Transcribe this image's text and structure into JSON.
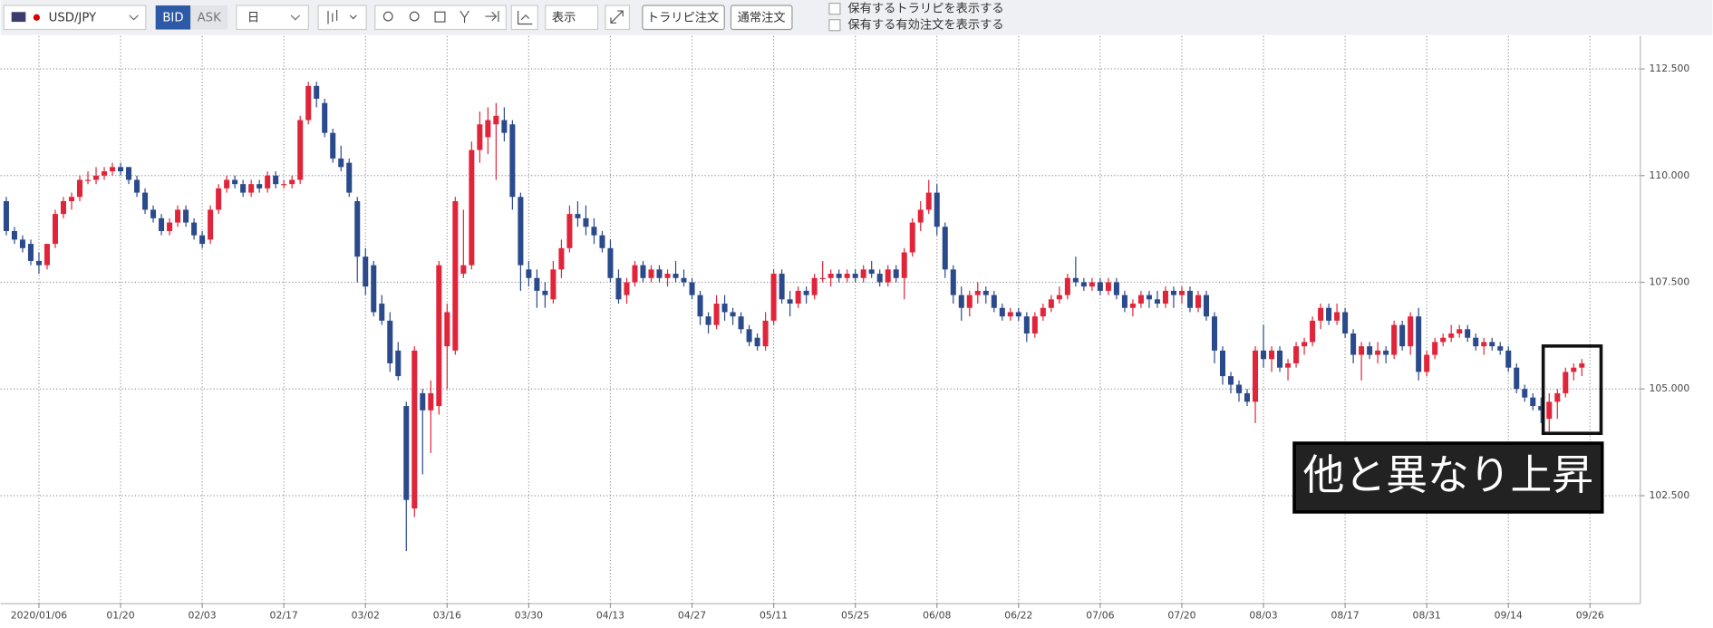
{
  "toolbar": {
    "symbol": "USD/JPY",
    "bid": "BID",
    "ask": "ASK",
    "period": "日",
    "view": "表示",
    "trap_order": "トラリピ注文",
    "normal_order": "通常注文",
    "show_trap": "保有するトラリピを表示する",
    "show_orders": "保有する有効注文を表示する"
  },
  "chart_data": {
    "type": "candlestick",
    "annotation": "他と異なり上昇",
    "up_color": "#e0253a",
    "down_color": "#2b4a8b",
    "grid": true,
    "xlim": [
      -0.7,
      199.9
    ],
    "ylim": [
      99.97,
      113.27
    ],
    "yticks": [
      {
        "value": 102.5,
        "label": "102.500"
      },
      {
        "value": 105,
        "label": "105.000"
      },
      {
        "value": 107.5,
        "label": "107.500"
      },
      {
        "value": 110,
        "label": "110.000"
      },
      {
        "value": 112.5,
        "label": "112.500"
      }
    ],
    "xticks": [
      {
        "value": 4,
        "label": "2020/01/06"
      },
      {
        "value": 14,
        "label": "01/20"
      },
      {
        "value": 24,
        "label": "02/03"
      },
      {
        "value": 34,
        "label": "02/17"
      },
      {
        "value": 44,
        "label": "03/02"
      },
      {
        "value": 54,
        "label": "03/16"
      },
      {
        "value": 64,
        "label": "03/30"
      },
      {
        "value": 74,
        "label": "04/13"
      },
      {
        "value": 84,
        "label": "04/27"
      },
      {
        "value": 94,
        "label": "05/11"
      },
      {
        "value": 104,
        "label": "05/25"
      },
      {
        "value": 114,
        "label": "06/08"
      },
      {
        "value": 124,
        "label": "06/22"
      },
      {
        "value": 134,
        "label": "07/06"
      },
      {
        "value": 144,
        "label": "07/20"
      },
      {
        "value": 154,
        "label": "08/03"
      },
      {
        "value": 164,
        "label": "08/17"
      },
      {
        "value": 174,
        "label": "08/31"
      },
      {
        "value": 184,
        "label": "09/14"
      },
      {
        "value": 194,
        "label": "09/26"
      }
    ],
    "candles": [
      [
        109.4,
        109.5,
        108.6,
        108.7
      ],
      [
        108.7,
        108.8,
        108.4,
        108.5
      ],
      [
        108.5,
        108.6,
        108.2,
        108.3
      ],
      [
        108.4,
        108.5,
        107.9,
        108.0
      ],
      [
        108.0,
        108.2,
        107.7,
        107.9
      ],
      [
        107.9,
        108.4,
        107.8,
        108.4
      ],
      [
        108.4,
        109.2,
        108.3,
        109.1
      ],
      [
        109.1,
        109.5,
        109.0,
        109.4
      ],
      [
        109.4,
        109.6,
        109.2,
        109.5
      ],
      [
        109.5,
        110.0,
        109.4,
        109.9
      ],
      [
        109.9,
        110.1,
        109.8,
        109.9
      ],
      [
        109.9,
        110.2,
        109.8,
        110.0
      ],
      [
        110.0,
        110.2,
        109.9,
        110.1
      ],
      [
        110.1,
        110.3,
        110.0,
        110.2
      ],
      [
        110.2,
        110.3,
        110.0,
        110.1
      ],
      [
        110.2,
        110.2,
        109.8,
        109.9
      ],
      [
        109.9,
        110.0,
        109.5,
        109.6
      ],
      [
        109.6,
        109.7,
        109.1,
        109.2
      ],
      [
        109.2,
        109.3,
        108.9,
        109.0
      ],
      [
        109.0,
        109.1,
        108.6,
        108.7
      ],
      [
        108.7,
        109.0,
        108.6,
        108.9
      ],
      [
        108.9,
        109.3,
        108.8,
        109.2
      ],
      [
        109.2,
        109.3,
        108.8,
        108.9
      ],
      [
        108.9,
        109.0,
        108.5,
        108.6
      ],
      [
        108.6,
        108.7,
        108.3,
        108.4
      ],
      [
        108.5,
        109.3,
        108.4,
        109.2
      ],
      [
        109.2,
        109.8,
        109.1,
        109.7
      ],
      [
        109.7,
        110.0,
        109.6,
        109.9
      ],
      [
        109.9,
        110.0,
        109.7,
        109.8
      ],
      [
        109.8,
        109.9,
        109.5,
        109.6
      ],
      [
        109.6,
        109.9,
        109.5,
        109.8
      ],
      [
        109.8,
        109.9,
        109.6,
        109.7
      ],
      [
        109.7,
        110.1,
        109.6,
        110.0
      ],
      [
        110.0,
        110.1,
        109.7,
        109.8
      ],
      [
        109.8,
        109.9,
        109.7,
        109.8
      ],
      [
        109.8,
        110.0,
        109.7,
        109.9
      ],
      [
        109.9,
        111.4,
        109.8,
        111.3
      ],
      [
        111.3,
        112.2,
        111.2,
        112.1
      ],
      [
        112.1,
        112.2,
        111.6,
        111.8
      ],
      [
        111.7,
        111.8,
        110.9,
        111.0
      ],
      [
        111.0,
        111.1,
        110.3,
        110.4
      ],
      [
        110.4,
        110.7,
        110.1,
        110.2
      ],
      [
        110.3,
        110.4,
        109.5,
        109.6
      ],
      [
        109.4,
        109.5,
        107.5,
        108.1
      ],
      [
        108.1,
        108.3,
        107.2,
        107.4
      ],
      [
        107.9,
        108.0,
        106.7,
        106.8
      ],
      [
        107.0,
        107.2,
        106.5,
        106.6
      ],
      [
        106.6,
        106.8,
        105.4,
        105.6
      ],
      [
        105.9,
        106.1,
        105.2,
        105.3
      ],
      [
        104.6,
        104.7,
        101.2,
        102.4
      ],
      [
        102.2,
        106.0,
        102.0,
        105.9
      ],
      [
        104.9,
        105.0,
        103.0,
        104.5
      ],
      [
        104.5,
        105.2,
        103.5,
        104.9
      ],
      [
        104.6,
        108.0,
        104.4,
        107.9
      ],
      [
        106.0,
        107.0,
        105.0,
        106.8
      ],
      [
        105.9,
        109.5,
        105.8,
        109.4
      ],
      [
        107.7,
        109.2,
        107.6,
        107.9
      ],
      [
        107.9,
        110.8,
        107.8,
        110.6
      ],
      [
        110.6,
        111.5,
        110.3,
        111.2
      ],
      [
        110.9,
        111.6,
        110.5,
        111.3
      ],
      [
        111.2,
        111.7,
        109.9,
        111.4
      ],
      [
        111.3,
        111.6,
        110.8,
        111.0
      ],
      [
        111.2,
        111.3,
        109.2,
        109.5
      ],
      [
        109.5,
        109.6,
        107.3,
        107.9
      ],
      [
        107.8,
        108.0,
        107.4,
        107.6
      ],
      [
        107.6,
        107.8,
        106.9,
        107.3
      ],
      [
        107.3,
        107.5,
        106.9,
        107.2
      ],
      [
        107.1,
        108.0,
        107.0,
        107.8
      ],
      [
        107.8,
        108.5,
        107.6,
        108.3
      ],
      [
        108.3,
        109.3,
        108.2,
        109.1
      ],
      [
        109.1,
        109.4,
        108.8,
        109.0
      ],
      [
        109.0,
        109.3,
        108.6,
        108.8
      ],
      [
        108.8,
        109.0,
        108.4,
        108.6
      ],
      [
        108.6,
        108.7,
        108.2,
        108.3
      ],
      [
        108.3,
        108.5,
        107.5,
        107.6
      ],
      [
        107.6,
        107.8,
        107.0,
        107.1
      ],
      [
        107.2,
        107.6,
        107.0,
        107.5
      ],
      [
        107.5,
        108.0,
        107.4,
        107.9
      ],
      [
        107.9,
        108.0,
        107.5,
        107.6
      ],
      [
        107.6,
        107.9,
        107.5,
        107.8
      ],
      [
        107.8,
        107.9,
        107.5,
        107.6
      ],
      [
        107.6,
        107.8,
        107.4,
        107.7
      ],
      [
        107.7,
        108.0,
        107.5,
        107.6
      ],
      [
        107.6,
        107.8,
        107.4,
        107.5
      ],
      [
        107.5,
        107.6,
        107.1,
        107.2
      ],
      [
        107.2,
        107.3,
        106.5,
        106.7
      ],
      [
        106.7,
        106.8,
        106.3,
        106.5
      ],
      [
        106.5,
        107.2,
        106.4,
        107.0
      ],
      [
        107.0,
        107.2,
        106.6,
        106.8
      ],
      [
        106.8,
        106.9,
        106.5,
        106.7
      ],
      [
        106.7,
        106.8,
        106.3,
        106.4
      ],
      [
        106.4,
        106.5,
        106.0,
        106.1
      ],
      [
        106.2,
        106.3,
        105.9,
        106.0
      ],
      [
        106.0,
        106.8,
        105.9,
        106.6
      ],
      [
        106.6,
        107.8,
        106.5,
        107.7
      ],
      [
        107.7,
        107.8,
        107.0,
        107.1
      ],
      [
        107.1,
        107.3,
        106.7,
        107.0
      ],
      [
        107.0,
        107.4,
        106.9,
        107.3
      ],
      [
        107.3,
        107.4,
        107.0,
        107.2
      ],
      [
        107.2,
        107.7,
        107.1,
        107.6
      ],
      [
        107.6,
        108.0,
        107.5,
        107.6
      ],
      [
        107.6,
        107.8,
        107.4,
        107.7
      ],
      [
        107.7,
        107.8,
        107.5,
        107.6
      ],
      [
        107.6,
        107.8,
        107.5,
        107.7
      ],
      [
        107.7,
        107.8,
        107.5,
        107.6
      ],
      [
        107.6,
        107.9,
        107.5,
        107.8
      ],
      [
        107.8,
        108.0,
        107.6,
        107.7
      ],
      [
        107.7,
        107.8,
        107.4,
        107.5
      ],
      [
        107.5,
        107.9,
        107.4,
        107.8
      ],
      [
        107.8,
        107.9,
        107.5,
        107.6
      ],
      [
        107.6,
        108.3,
        107.1,
        108.2
      ],
      [
        108.2,
        109.0,
        108.1,
        108.9
      ],
      [
        108.9,
        109.4,
        108.7,
        109.2
      ],
      [
        109.2,
        109.9,
        109.1,
        109.6
      ],
      [
        109.6,
        109.8,
        108.6,
        108.8
      ],
      [
        108.8,
        108.9,
        107.6,
        107.8
      ],
      [
        107.8,
        107.9,
        107.0,
        107.2
      ],
      [
        107.2,
        107.4,
        106.6,
        106.9
      ],
      [
        106.9,
        107.3,
        106.7,
        107.2
      ],
      [
        107.2,
        107.5,
        107.0,
        107.3
      ],
      [
        107.3,
        107.4,
        107.0,
        107.2
      ],
      [
        107.2,
        107.3,
        106.8,
        106.9
      ],
      [
        106.9,
        107.0,
        106.6,
        106.7
      ],
      [
        106.7,
        106.9,
        106.6,
        106.8
      ],
      [
        106.8,
        106.9,
        106.6,
        106.7
      ],
      [
        106.7,
        106.8,
        106.1,
        106.3
      ],
      [
        106.3,
        106.8,
        106.2,
        106.7
      ],
      [
        106.7,
        107.0,
        106.6,
        106.9
      ],
      [
        106.9,
        107.2,
        106.8,
        107.1
      ],
      [
        107.1,
        107.4,
        107.0,
        107.2
      ],
      [
        107.2,
        107.7,
        107.1,
        107.6
      ],
      [
        107.6,
        108.1,
        107.4,
        107.5
      ],
      [
        107.5,
        107.6,
        107.3,
        107.4
      ],
      [
        107.4,
        107.6,
        107.3,
        107.5
      ],
      [
        107.5,
        107.6,
        107.2,
        107.3
      ],
      [
        107.3,
        107.6,
        107.2,
        107.5
      ],
      [
        107.5,
        107.6,
        107.1,
        107.2
      ],
      [
        107.2,
        107.3,
        106.8,
        106.9
      ],
      [
        106.9,
        107.1,
        106.7,
        107.0
      ],
      [
        107.0,
        107.3,
        106.9,
        107.2
      ],
      [
        107.2,
        107.3,
        106.9,
        107.1
      ],
      [
        107.1,
        107.3,
        106.9,
        107.0
      ],
      [
        107.0,
        107.4,
        106.9,
        107.3
      ],
      [
        107.3,
        107.4,
        106.9,
        107.2
      ],
      [
        107.2,
        107.4,
        107.0,
        107.3
      ],
      [
        107.3,
        107.4,
        106.8,
        106.9
      ],
      [
        106.9,
        107.3,
        106.8,
        107.2
      ],
      [
        107.2,
        107.3,
        106.6,
        106.7
      ],
      [
        106.7,
        106.8,
        105.6,
        105.9
      ],
      [
        105.9,
        106.0,
        105.1,
        105.3
      ],
      [
        105.3,
        105.4,
        104.9,
        105.1
      ],
      [
        105.1,
        105.2,
        104.7,
        104.9
      ],
      [
        104.9,
        105.0,
        104.6,
        104.7
      ],
      [
        104.7,
        106.0,
        104.2,
        105.9
      ],
      [
        105.9,
        106.5,
        105.5,
        105.7
      ],
      [
        105.7,
        106.0,
        105.4,
        105.9
      ],
      [
        105.9,
        106.0,
        105.4,
        105.5
      ],
      [
        105.5,
        105.7,
        105.2,
        105.6
      ],
      [
        105.6,
        106.1,
        105.5,
        106.0
      ],
      [
        106.0,
        106.2,
        105.8,
        106.1
      ],
      [
        106.1,
        106.7,
        106.0,
        106.6
      ],
      [
        106.6,
        107.0,
        106.4,
        106.9
      ],
      [
        106.9,
        107.0,
        106.5,
        106.6
      ],
      [
        106.6,
        107.0,
        106.5,
        106.8
      ],
      [
        106.8,
        106.9,
        106.2,
        106.3
      ],
      [
        106.3,
        106.4,
        105.6,
        105.8
      ],
      [
        105.8,
        106.1,
        105.2,
        106.0
      ],
      [
        106.0,
        106.1,
        105.7,
        105.8
      ],
      [
        105.8,
        106.1,
        105.6,
        105.9
      ],
      [
        105.9,
        106.0,
        105.6,
        105.8
      ],
      [
        105.8,
        106.6,
        105.7,
        106.5
      ],
      [
        106.5,
        106.6,
        105.9,
        106.0
      ],
      [
        106.0,
        106.8,
        105.8,
        106.7
      ],
      [
        106.7,
        106.9,
        105.2,
        105.4
      ],
      [
        105.4,
        105.9,
        105.3,
        105.8
      ],
      [
        105.8,
        106.2,
        105.7,
        106.1
      ],
      [
        106.1,
        106.3,
        106.0,
        106.2
      ],
      [
        106.2,
        106.5,
        106.1,
        106.3
      ],
      [
        106.3,
        106.5,
        106.2,
        106.4
      ],
      [
        106.4,
        106.5,
        106.1,
        106.2
      ],
      [
        106.2,
        106.3,
        105.9,
        106.0
      ],
      [
        106.0,
        106.2,
        105.8,
        106.1
      ],
      [
        106.1,
        106.2,
        105.9,
        106.0
      ],
      [
        106.0,
        106.1,
        105.8,
        105.9
      ],
      [
        105.9,
        106.0,
        105.4,
        105.5
      ],
      [
        105.5,
        105.6,
        104.9,
        105.0
      ],
      [
        105.0,
        105.1,
        104.7,
        104.8
      ],
      [
        104.8,
        104.9,
        104.5,
        104.6
      ],
      [
        104.6,
        104.8,
        104.2,
        104.5
      ],
      [
        104.3,
        104.9,
        104.0,
        104.7
      ],
      [
        104.7,
        105.0,
        104.3,
        104.9
      ],
      [
        104.9,
        105.5,
        104.8,
        105.4
      ],
      [
        105.4,
        105.6,
        105.2,
        105.5
      ],
      [
        105.5,
        105.7,
        105.3,
        105.6
      ]
    ]
  }
}
